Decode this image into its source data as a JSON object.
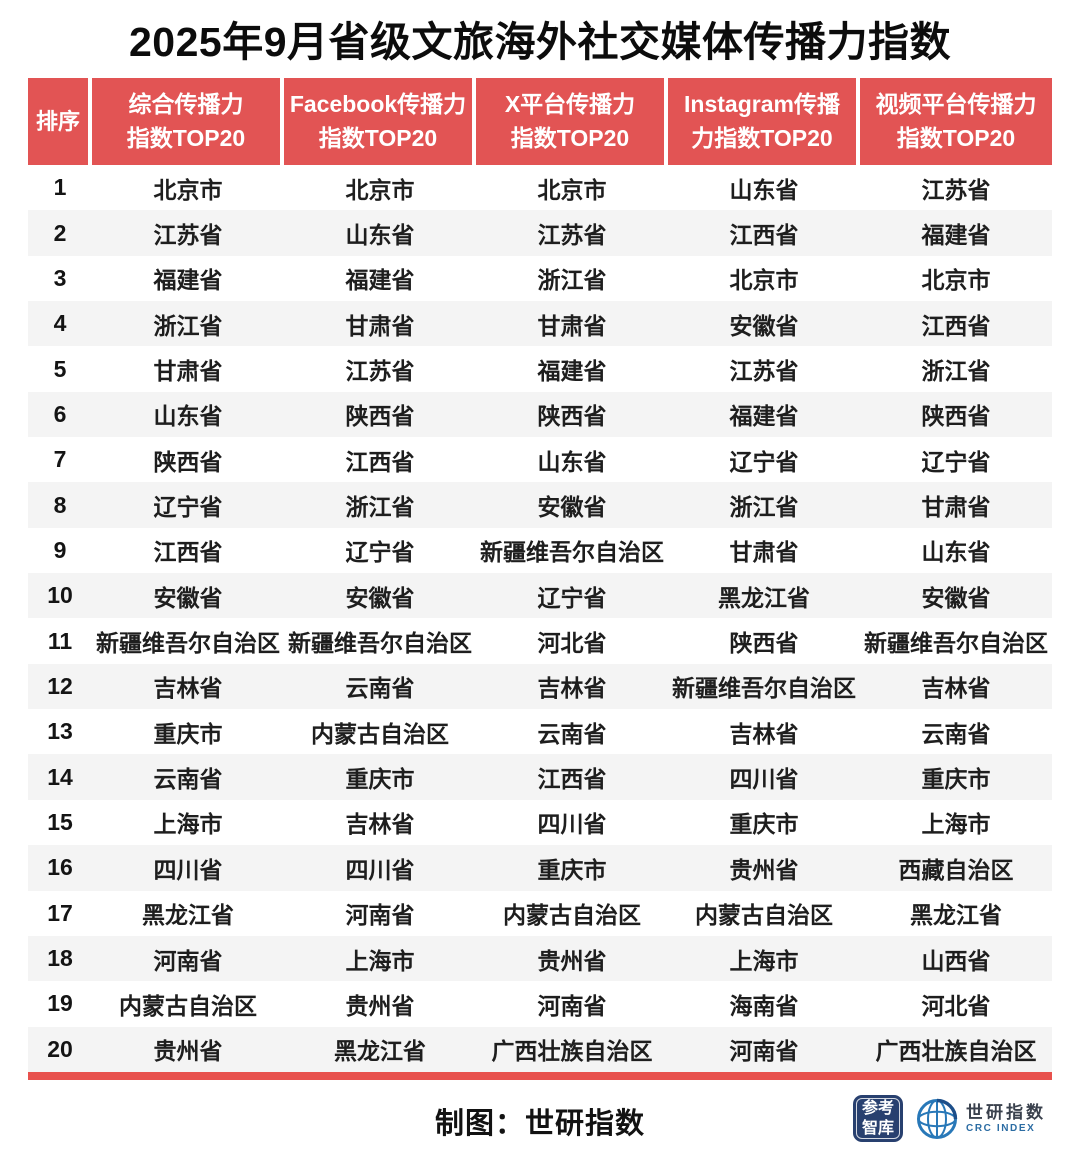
{
  "title": "2025年9月省级文旅海外社交媒体传播力指数",
  "table": {
    "headers": [
      {
        "key": "rank",
        "lines": [
          "排序"
        ]
      },
      {
        "key": "overall",
        "lines": [
          "综合传播力",
          "指数TOP20"
        ]
      },
      {
        "key": "facebook",
        "lines": [
          "Facebook传播力",
          "指数TOP20"
        ]
      },
      {
        "key": "x",
        "lines": [
          "X平台传播力",
          "指数TOP20"
        ]
      },
      {
        "key": "instagram",
        "lines": [
          "Instagram传播",
          "力指数TOP20"
        ]
      },
      {
        "key": "video",
        "lines": [
          "视频平台传播力",
          "指数TOP20"
        ]
      }
    ]
  },
  "chart_data": {
    "type": "table",
    "title": "2025年9月省级文旅海外社交媒体传播力指数",
    "columns": [
      "排序",
      "综合传播力指数TOP20",
      "Facebook传播力指数TOP20",
      "X平台传播力指数TOP20",
      "Instagram传播力指数TOP20",
      "视频平台传播力指数TOP20"
    ],
    "rows": [
      [
        "1",
        "北京市",
        "北京市",
        "北京市",
        "山东省",
        "江苏省"
      ],
      [
        "2",
        "江苏省",
        "山东省",
        "江苏省",
        "江西省",
        "福建省"
      ],
      [
        "3",
        "福建省",
        "福建省",
        "浙江省",
        "北京市",
        "北京市"
      ],
      [
        "4",
        "浙江省",
        "甘肃省",
        "甘肃省",
        "安徽省",
        "江西省"
      ],
      [
        "5",
        "甘肃省",
        "江苏省",
        "福建省",
        "江苏省",
        "浙江省"
      ],
      [
        "6",
        "山东省",
        "陕西省",
        "陕西省",
        "福建省",
        "陕西省"
      ],
      [
        "7",
        "陕西省",
        "江西省",
        "山东省",
        "辽宁省",
        "辽宁省"
      ],
      [
        "8",
        "辽宁省",
        "浙江省",
        "安徽省",
        "浙江省",
        "甘肃省"
      ],
      [
        "9",
        "江西省",
        "辽宁省",
        "新疆维吾尔自治区",
        "甘肃省",
        "山东省"
      ],
      [
        "10",
        "安徽省",
        "安徽省",
        "辽宁省",
        "黑龙江省",
        "安徽省"
      ],
      [
        "11",
        "新疆维吾尔自治区",
        "新疆维吾尔自治区",
        "河北省",
        "陕西省",
        "新疆维吾尔自治区"
      ],
      [
        "12",
        "吉林省",
        "云南省",
        "吉林省",
        "新疆维吾尔自治区",
        "吉林省"
      ],
      [
        "13",
        "重庆市",
        "内蒙古自治区",
        "云南省",
        "吉林省",
        "云南省"
      ],
      [
        "14",
        "云南省",
        "重庆市",
        "江西省",
        "四川省",
        "重庆市"
      ],
      [
        "15",
        "上海市",
        "吉林省",
        "四川省",
        "重庆市",
        "上海市"
      ],
      [
        "16",
        "四川省",
        "四川省",
        "重庆市",
        "贵州省",
        "西藏自治区"
      ],
      [
        "17",
        "黑龙江省",
        "河南省",
        "内蒙古自治区",
        "内蒙古自治区",
        "黑龙江省"
      ],
      [
        "18",
        "河南省",
        "上海市",
        "贵州省",
        "上海市",
        "山西省"
      ],
      [
        "19",
        "内蒙古自治区",
        "贵州省",
        "河南省",
        "海南省",
        "河北省"
      ],
      [
        "20",
        "贵州省",
        "黑龙江省",
        "广西壮族自治区",
        "河南省",
        "广西壮族自治区"
      ]
    ],
    "layout_hints": {
      "striped_rows": "even ranks shaded",
      "header_background": "red",
      "grid": "off"
    }
  },
  "footer": {
    "credit": "制图：世研指数",
    "cankao_logo": {
      "line1": "参考",
      "line2": "智库"
    },
    "shiyan_logo": {
      "name": "世研指数",
      "subtitle": "CRC INDEX"
    }
  },
  "colors": {
    "header_red": "#e25454",
    "stripe_gray": "#f4f4f4",
    "bottom_bar_red": "#e8514d",
    "title_black": "#0c0c0c",
    "cankao_navy": "#28406f",
    "globe_blue": "#2878b8",
    "globe_navy": "#1d4f8a",
    "crc_blue": "#2b6ca3"
  }
}
